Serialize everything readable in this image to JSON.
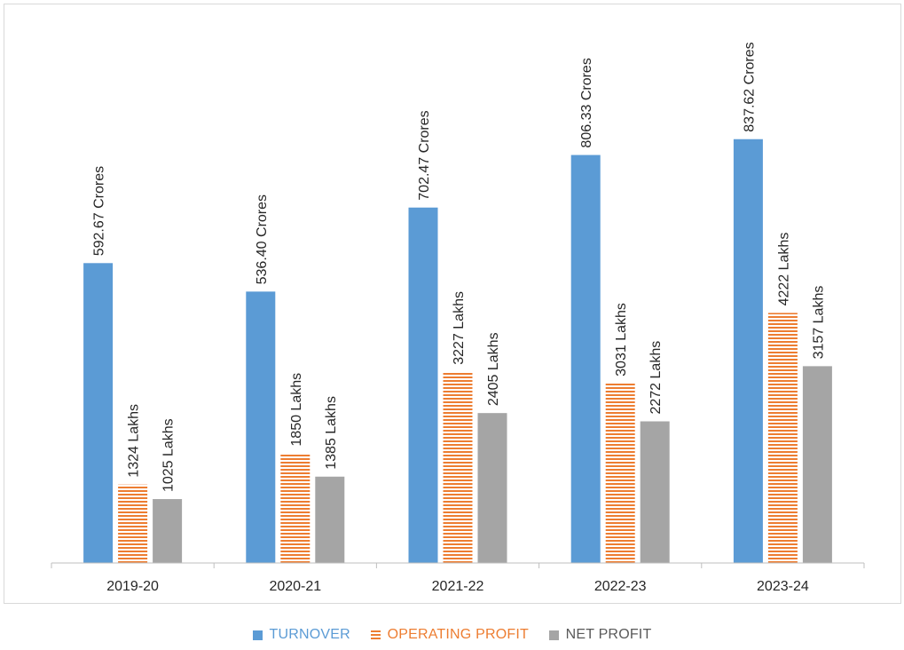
{
  "chart_data": {
    "type": "bar",
    "title": "",
    "xlabel": "",
    "ylabel": "",
    "categories": [
      "2019-20",
      "2020-21",
      "2021-22",
      "2022-23",
      "2023-24"
    ],
    "series": [
      {
        "name": "TURNOVER",
        "values": [
          592.67,
          536.4,
          702.47,
          806.33,
          837.62
        ],
        "labels": [
          "592.67 Crores",
          "536.40 Crores",
          "702.47 Crores",
          "806.33 Crores",
          "837.62 Crores"
        ],
        "color": "#5b9bd5",
        "pattern": "solid"
      },
      {
        "name": "OPERATING PROFIT",
        "values": [
          1324,
          1850,
          3227,
          3031,
          4222
        ],
        "labels": [
          "1324 Lakhs",
          "1850 Lakhs",
          "3227 Lakhs",
          "3031 Lakhs",
          "4222 Lakhs"
        ],
        "color": "#ed7d31",
        "pattern": "horizontal-stripes"
      },
      {
        "name": "NET PROFIT",
        "values": [
          1025,
          1385,
          2405,
          2272,
          3157
        ],
        "labels": [
          "1025 Lakhs",
          "1385 Lakhs",
          "2405 Lakhs",
          "2272 Lakhs",
          "3157 Lakhs"
        ],
        "color": "#a5a5a5",
        "pattern": "solid"
      }
    ],
    "data_labels": "rotated-vertical-above-bars",
    "gridlines": false,
    "y_axis_visible": false,
    "legend_position": "bottom"
  }
}
